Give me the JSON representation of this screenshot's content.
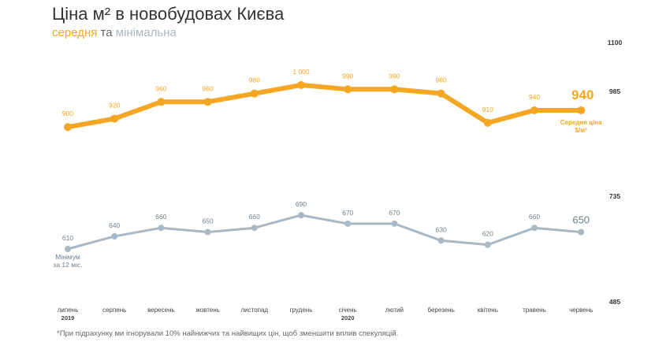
{
  "title": "Ціна м² в новобудовах Києва",
  "subtitle": {
    "avg": "середня",
    "and": "та",
    "min": "мінімальна"
  },
  "footnote": "*При підрахунку ми ігнорували 10% найнижчих та найвищих цін, щоб зменшити вплив спекуляцій.",
  "chart_data": {
    "type": "line",
    "categories": [
      "липень",
      "серпень",
      "вересень",
      "жовтень",
      "листопад",
      "грудень",
      "січень",
      "лютий",
      "березень",
      "квітень",
      "травень",
      "червень"
    ],
    "year_labels": [
      {
        "index": 0,
        "label": "2019"
      },
      {
        "index": 6,
        "label": "2020"
      }
    ],
    "series": [
      {
        "key": "avg",
        "color": "#f5a623",
        "values": [
          900,
          920,
          960,
          960,
          980,
          1000,
          990,
          990,
          980,
          910,
          940,
          940
        ],
        "value_labels": [
          "900",
          "920",
          "960",
          "960",
          "980",
          "1 000",
          "990",
          "990",
          "980",
          "910",
          "940",
          "940"
        ],
        "end_label_lines": [
          "Середня ціна",
          "$/м²"
        ]
      },
      {
        "key": "min",
        "color": "#a8b8c4",
        "values": [
          610,
          640,
          660,
          650,
          660,
          690,
          670,
          670,
          630,
          620,
          660,
          650
        ],
        "value_labels": [
          "610",
          "640",
          "660",
          "650",
          "660",
          "690",
          "670",
          "670",
          "630",
          "620",
          "660",
          "650"
        ],
        "start_label_lines": [
          "Мінімум",
          "за 12 міс."
        ]
      }
    ],
    "yticks": [
      1100,
      985,
      735,
      485
    ],
    "ylim": [
      485,
      1100
    ]
  }
}
